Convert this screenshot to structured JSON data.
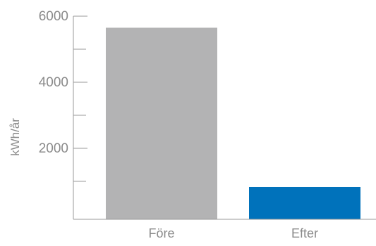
{
  "chart_data": {
    "type": "bar",
    "title": "",
    "xlabel": "",
    "ylabel": "kWh/år",
    "categories": [
      "Före",
      "Efter"
    ],
    "values": [
      5650,
      830
    ],
    "bar_colors": [
      "#b3b3b4",
      "#0072bb"
    ],
    "ylim": [
      0,
      6000
    ],
    "major_ticks": [
      2000,
      4000,
      6000
    ],
    "minor_ticks": [
      1000,
      3000,
      5000
    ],
    "tick_labels": [
      "2000",
      "4000",
      "6000"
    ],
    "grid": false,
    "legend": "none"
  }
}
